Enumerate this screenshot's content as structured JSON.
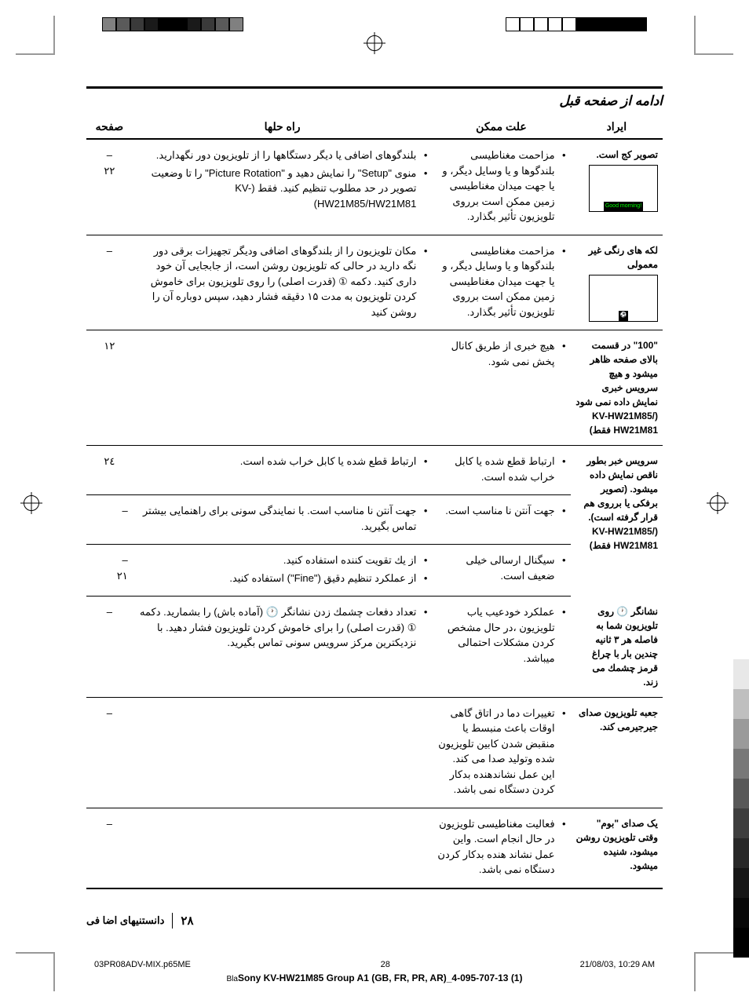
{
  "header": {
    "continued": "ادامه از صفحه قبل"
  },
  "table": {
    "headers": {
      "issue": "ایراد",
      "cause": "علت ممکن",
      "solution": "راه حلها",
      "page": "صفحه"
    },
    "rows": [
      {
        "issue": "تصویر کج است.",
        "fig": "Good morning!",
        "cause": [
          "مزاحمت مغناطیسی بلندگوها و یا وسایل دیگر، و یا جهت میدان مغناطیسی زمین ممکن است برروی تلویزیون تأثیر بگذارد."
        ],
        "solution": [
          "بلندگوهای اضافی یا دیگر دستگاهها را از تلویزیون دور نگهدارید.",
          "منوی \"Setup\" را نمایش دهید و \"Picture Rotation\" را تا وضعیت تصویر در حد مطلوب تنظیم کنید. فقط (KV-HW21M85/HW21M81)"
        ],
        "pages": [
          "–",
          "۲۲"
        ]
      },
      {
        "issue": "لکه های رنگی غیر معمولی",
        "fig": "sports",
        "cause": [
          "مزاحمت مغناطیسی بلندگوها و یا وسایل دیگر، و یا جهت میدان مغناطیسی زمین ممکن است برروی تلویزیون تأثیر بگذارد."
        ],
        "solution": [
          "مکان تلویزیون را از بلندگوهای اضافی ودیگر تجهیزات برقی دور نگه دارید در حالی که تلویزیون روشن است، از جابجایی آن خود داری کنید. دکمه ① (قدرت اصلی) را روی تلویزیون برای خاموش کردن تلویزیون به مدت ۱۵ دقیقه فشار دهید، سپس دوباره آن را روشن کنید"
        ],
        "pages": [
          "–"
        ]
      },
      {
        "issue": "\"100\" در قسمت بالای صفحه ظاهر میشود و هیچ سرویس خبری نمایش داده نمی شود (KV-HW21M85/ HW21M81 فقط)",
        "cause": [
          "هیچ خبری از طریق کانال پخش نمی شود."
        ],
        "solution": [],
        "pages": [
          "۱۲"
        ]
      },
      {
        "issue": "سرویس خبر بطور ناقص نمایش داده میشود. (تصویر برفکی یا برروی هم قرار گرفته است). (KV-HW21M85/ HW21M81 فقط)",
        "subrows": [
          {
            "cause": [
              "ارتباط قطع شده یا کابل خراب شده است."
            ],
            "solution": [
              "ارتباط قطع شده یا کابل خراب شده است."
            ],
            "pages": [
              "۲٤"
            ]
          },
          {
            "cause": [
              "جهت آنتن نا مناسب است."
            ],
            "solution": [
              "جهت آنتن نا مناسب است. با نمایندگی سونی برای راهنمایی بیشتر تماس بگیرید."
            ],
            "pages": [
              "–"
            ]
          },
          {
            "cause": [
              "سیگنال ارسالی خیلی ضعیف است."
            ],
            "solution": [
              "از یك تقویت کننده استفاده کنید.",
              "از عملکرد تنظیم دقیق (\"Fine\") استفاده کنید."
            ],
            "pages": [
              "–",
              "۲۱"
            ]
          }
        ]
      },
      {
        "issue": "نشانگر 🕐 روی تلویزیون شما به فاصله هر ۳ ثانیه چندین بار با چراغ قرمز چشمك می زند.",
        "cause": [
          "عملکرد خودعیب یاب تلویزیون ،در حال مشخص کردن مشکلات احتمالی میباشد."
        ],
        "solution": [
          "تعداد دفعات چشمك زدن نشانگر 🕐 (آماده باش) را بشمارید. دکمه ① (قدرت اصلی) را برای خاموش کردن تلویزیون فشار دهید. با نزدیکترین مرکز سرویس سونی تماس بگیرید."
        ],
        "pages": [
          "–"
        ]
      },
      {
        "issue": "جعبه تلویزیون صدای جیرجیرمی کند.",
        "cause": [
          "تغییرات دما در اتاق گاهی اوقات باعث منبسط یا منقبض شدن کابین تلویزیون شده وتولید صدا می کند. این عمل نشاندهنده بدکار کردن دستگاه نمی باشد."
        ],
        "solution": [],
        "pages": [
          "–"
        ]
      },
      {
        "issue": "یک صدای \"بوم\" وقتی تلویزیون روشن میشود، شنیده میشود.",
        "cause": [
          "فعالیت مغناطیسی تلویزیون در حال انجام است. واین عمل نشاند هنده بدکار کردن دستگاه نمی باشد."
        ],
        "solution": [],
        "pages": [
          "–"
        ]
      }
    ]
  },
  "footer": {
    "page_num": "۲۸",
    "section": "دانستنیهای اضا فی",
    "file": "03PR08ADV-MIX.p65ME",
    "pg": "28",
    "date": "21/08/03, 10:29 AM",
    "bottom": "Sony KV-HW21M85 Group A1 (GB, FR, PR, AR)_4-095-707-13 (1)",
    "bla": "Bla"
  },
  "colors": {
    "bar_top": [
      "#808080",
      "#5a5a5a",
      "#3a3a3a",
      "#1a1a1a",
      "#000000",
      "#000000",
      "#1a1a1a",
      "#3a3a3a",
      "#5a5a5a",
      "#808080"
    ],
    "bar_top_r": [
      "#ffffff",
      "#ffffff",
      "#ffffff",
      "#ffffff",
      "#ffffff",
      "#000000",
      "#000000",
      "#000000",
      "#000000",
      "#000000"
    ],
    "bar_side": [
      "#e8e8e8",
      "#bfbfbf",
      "#9a9a9a",
      "#787878",
      "#585858",
      "#3e3e3e",
      "#282828",
      "#161616",
      "#080808",
      "#000000"
    ]
  }
}
